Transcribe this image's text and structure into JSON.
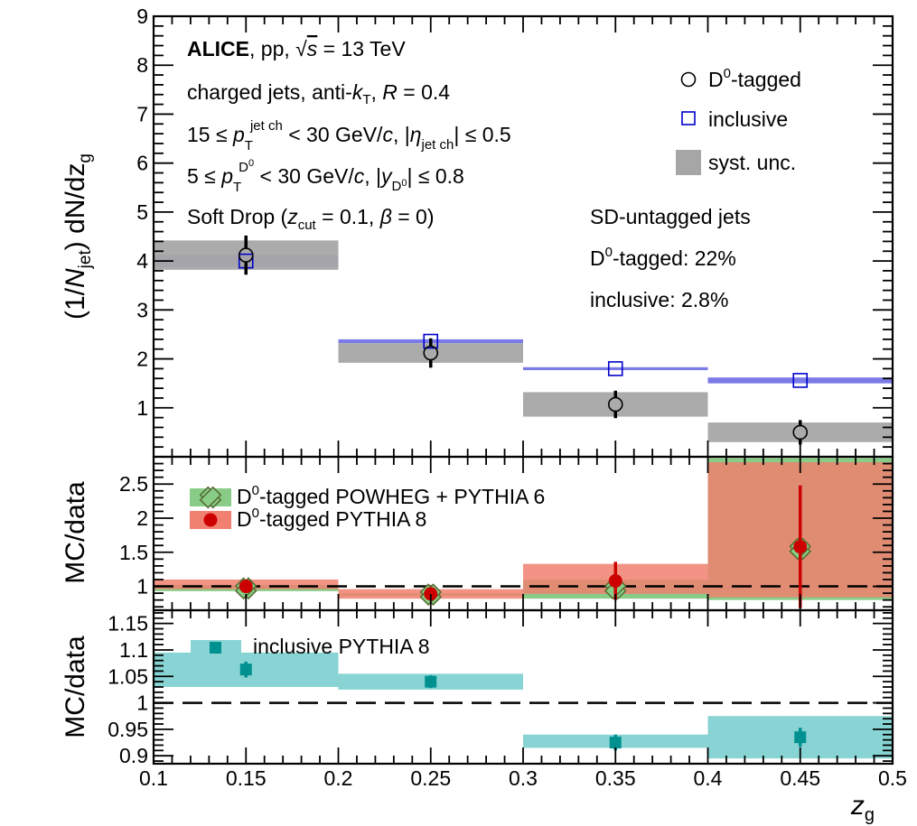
{
  "colors": {
    "data_syst": "#a6a6a6",
    "inclusive_syst": "#7b7be8",
    "inclusive_marker": "#0000cc",
    "powheg_band": "#88cc88",
    "pythia8_band": "#f08070",
    "pythia8_marker": "#cc0000",
    "powheg_marker_edge": "#556b2f",
    "incl_pythia8_band": "#88d4d4",
    "incl_pythia8_marker": "#009090"
  },
  "x_axis": {
    "title_main": "z",
    "title_sub": "g",
    "ticks": [
      "0.1",
      "0.15",
      "0.2",
      "0.25",
      "0.3",
      "0.35",
      "0.4",
      "0.45",
      "0.5"
    ]
  },
  "top_panel": {
    "ylabel": {
      "a": "(1/",
      "b": "N",
      "c": "jet",
      "d": ") dN/dz",
      "e": "g"
    },
    "yticks": [
      "1",
      "2",
      "3",
      "4",
      "5",
      "6",
      "7",
      "8",
      "9"
    ],
    "annotations": {
      "line1": {
        "alice": "ALICE",
        "rest": ", pp, ",
        "sqrt": "√",
        "s": "s",
        "energy": " = 13 TeV"
      },
      "line2": {
        "a": "charged jets, anti-",
        "k": "k",
        "T": "T",
        "b": ", ",
        "R": "R",
        "c": " = 0.4"
      },
      "line3": {
        "a": "15 ≤ ",
        "p": "p",
        "T": "T",
        "sup": "jet ch",
        "b": " < 30 GeV/",
        "c": "c",
        "d": ", |",
        "eta": "η",
        "sub": "jet ch",
        "e": "| ≤ 0.5"
      },
      "line4": {
        "a": "5 ≤ ",
        "p": "p",
        "T": "T",
        "sup": "D",
        "supsup": "0",
        "b": " < 30 GeV/",
        "c": "c",
        "d": ", |",
        "y": "y",
        "sub": "D",
        "subsup": "0",
        "e": "| ≤ 0.8"
      },
      "line5": {
        "a": "Soft Drop (",
        "z": "z",
        "cut": "cut",
        "b": " = 0.1, ",
        "beta": "β",
        "c": " = 0)"
      },
      "sd_title": "SD-untagged jets",
      "sd_d0": {
        "a": "D",
        "sup": "0",
        "b": "-tagged: 22%"
      },
      "sd_incl": "inclusive: 2.8%"
    },
    "legend": {
      "d0": {
        "a": "D",
        "sup": "0",
        "b": "-tagged"
      },
      "inclusive": "inclusive",
      "syst": "syst. unc."
    }
  },
  "mid_panel": {
    "ylabel": "MC/data",
    "yticks": [
      "1",
      "1.5",
      "2",
      "2.5"
    ],
    "legend": {
      "powheg": {
        "a": "D",
        "sup": "0",
        "b": "-tagged POWHEG + PYTHIA 6"
      },
      "pythia8": {
        "a": "D",
        "sup": "0",
        "b": "-tagged PYTHIA 8"
      }
    }
  },
  "bottom_panel": {
    "ylabel": "MC/data",
    "yticks": [
      "0.9",
      "0.95",
      "1",
      "1.05",
      "1.1",
      "1.15"
    ],
    "legend": {
      "incl_pythia8": "inclusive PYTHIA 8"
    }
  },
  "chart_data": [
    {
      "type": "scatter",
      "panel": "top",
      "xlabel": "z_g",
      "ylabel": "(1/N_jet) dN/dz_g",
      "xlim": [
        0.1,
        0.5
      ],
      "ylim": [
        0,
        9
      ],
      "bins": [
        [
          0.1,
          0.2
        ],
        [
          0.2,
          0.3
        ],
        [
          0.3,
          0.4
        ],
        [
          0.4,
          0.5
        ]
      ],
      "series": [
        {
          "name": "D0-tagged",
          "x": [
            0.15,
            0.25,
            0.35,
            0.45
          ],
          "y": [
            4.12,
            2.12,
            1.07,
            0.5
          ],
          "stat_err": [
            0.4,
            0.3,
            0.28,
            0.25
          ],
          "syst_err": [
            0.3,
            0.2,
            0.25,
            0.2
          ]
        },
        {
          "name": "inclusive",
          "x": [
            0.15,
            0.25,
            0.35,
            0.45
          ],
          "y": [
            4.0,
            2.36,
            1.8,
            1.56
          ],
          "stat_err": [
            0.03,
            0.02,
            0.02,
            0.02
          ],
          "syst_err": [
            0.12,
            0.04,
            0.03,
            0.06
          ]
        }
      ]
    },
    {
      "type": "scatter",
      "panel": "middle",
      "ylabel": "MC/data",
      "xlim": [
        0.1,
        0.5
      ],
      "ylim": [
        0.65,
        2.9
      ],
      "reference_line": 1,
      "series": [
        {
          "name": "D0-tagged POWHEG + PYTHIA 6",
          "x": [
            0.15,
            0.25,
            0.35,
            0.45
          ],
          "y": [
            0.97,
            0.88,
            0.97,
            1.55
          ],
          "band_low": [
            0.93,
            0.86,
            0.82,
            0.8
          ],
          "band_high": [
            1.02,
            0.9,
            1.1,
            2.88
          ]
        },
        {
          "name": "D0-tagged PYTHIA 8",
          "x": [
            0.15,
            0.25,
            0.35,
            0.45
          ],
          "y": [
            1.0,
            0.89,
            1.08,
            1.58
          ],
          "stat_err": [
            0.04,
            0.06,
            0.28,
            0.9
          ],
          "band_low": [
            0.96,
            0.82,
            0.89,
            0.84
          ],
          "band_high": [
            1.1,
            0.96,
            1.33,
            2.82
          ]
        }
      ]
    },
    {
      "type": "scatter",
      "panel": "bottom",
      "ylabel": "MC/data",
      "xlim": [
        0.1,
        0.5
      ],
      "ylim": [
        0.885,
        1.175
      ],
      "reference_line": 1,
      "series": [
        {
          "name": "inclusive PYTHIA 8",
          "x": [
            0.15,
            0.25,
            0.35,
            0.45
          ],
          "y": [
            1.063,
            1.04,
            0.925,
            0.935
          ],
          "stat_err": [
            0.015,
            0.012,
            0.015,
            0.018
          ],
          "band_low": [
            1.03,
            1.025,
            0.915,
            0.895
          ],
          "band_high": [
            1.095,
            1.055,
            0.94,
            0.975
          ]
        }
      ]
    }
  ]
}
